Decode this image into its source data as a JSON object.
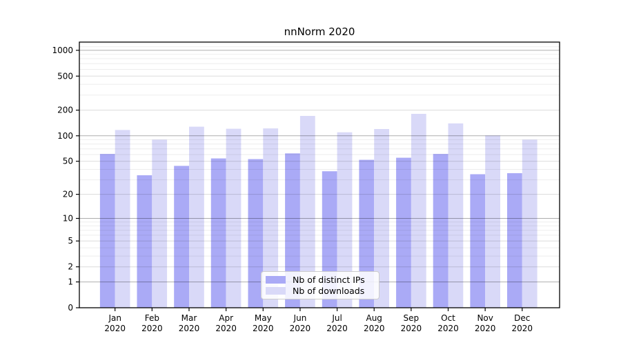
{
  "chart_data": {
    "type": "bar",
    "title": "nnNorm 2020",
    "categories": [
      "Jan 2020",
      "Feb 2020",
      "Mar 2020",
      "Apr 2020",
      "May 2020",
      "Jun 2020",
      "Jul 2020",
      "Aug 2020",
      "Sep 2020",
      "Oct 2020",
      "Nov 2020",
      "Dec 2020"
    ],
    "series": [
      {
        "name": "Nb of distinct IPs",
        "color": "#aaaaf6",
        "values": [
          61,
          34,
          44,
          54,
          53,
          62,
          38,
          52,
          55,
          61,
          35,
          36
        ]
      },
      {
        "name": "Nb of downloads",
        "color": "#d9d9f8",
        "values": [
          117,
          90,
          128,
          121,
          122,
          171,
          110,
          120,
          181,
          140,
          101,
          90
        ]
      }
    ],
    "xlabel": "",
    "ylabel": "",
    "yscale": "log1p",
    "ylim": [
      0,
      1250
    ],
    "yticks": [
      0,
      1,
      2,
      5,
      10,
      20,
      50,
      100,
      200,
      500,
      1000
    ],
    "minor_gridlines": [
      3,
      4,
      6,
      7,
      8,
      9,
      30,
      40,
      60,
      70,
      80,
      90,
      300,
      400,
      600,
      700,
      800,
      900,
      1100,
      1200
    ],
    "emphasized_gridlines": [
      1,
      10,
      100,
      1000
    ],
    "grid": true,
    "legend_position": "lower center"
  },
  "colors": {
    "spine": "#000000",
    "grid_minor": "rgba(0,0,0,0.07)",
    "grid_major": "rgba(0,0,0,0.14)",
    "grid_emphasized": "rgba(0,0,0,0.32)",
    "text": "#000000"
  }
}
